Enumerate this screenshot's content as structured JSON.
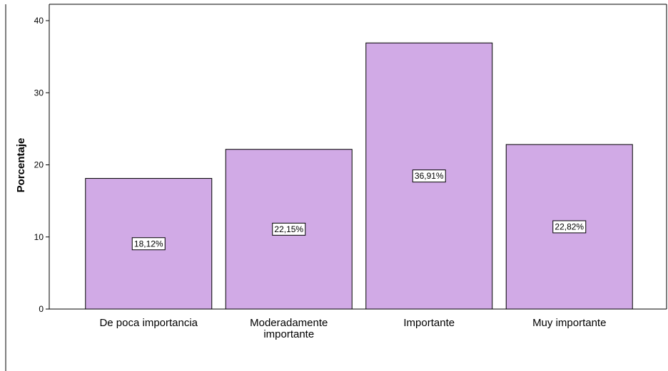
{
  "chart_data": {
    "type": "bar",
    "title": "",
    "xlabel": "",
    "ylabel": "Porcentaje",
    "ylim": [
      0,
      40
    ],
    "yticks": [
      0,
      10,
      20,
      30,
      40
    ],
    "grid": false,
    "categories": [
      [
        "De poca importancia"
      ],
      [
        "Moderadamente",
        "importante"
      ],
      [
        "Importante"
      ],
      [
        "Muy importante"
      ]
    ],
    "values": [
      18.12,
      22.15,
      36.91,
      22.82
    ],
    "data_labels": [
      "18,12%",
      "22,15%",
      "36,91%",
      "22,82%"
    ],
    "colors": {
      "bar_fill": "#d1aae6",
      "bar_stroke": "#000000",
      "label_box_fill": "#ffffff"
    }
  }
}
